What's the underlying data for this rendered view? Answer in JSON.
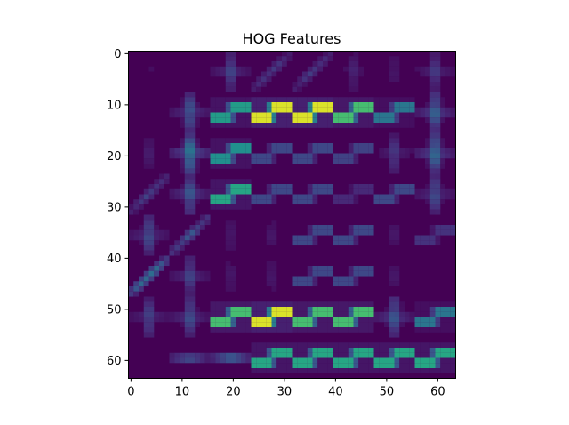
{
  "chart_data": {
    "type": "heatmap",
    "title": "HOG Features",
    "xlabel": "",
    "ylabel": "",
    "xlim": [
      -0.5,
      63.5
    ],
    "ylim": [
      63.5,
      -0.5
    ],
    "x_ticks": [
      0,
      10,
      20,
      30,
      40,
      50,
      60
    ],
    "y_ticks": [
      0,
      10,
      20,
      30,
      40,
      50,
      60
    ],
    "x_tick_labels": [
      "0",
      "10",
      "20",
      "30",
      "40",
      "50",
      "60"
    ],
    "y_tick_labels": [
      "0",
      "10",
      "20",
      "30",
      "40",
      "50",
      "60"
    ],
    "grid": false,
    "colormap": "viridis",
    "value_range": [
      0,
      1
    ],
    "background_value": 0,
    "background_color": "#440154",
    "cell_size": 8,
    "cells": [
      [
        0.06,
        0.06,
        0.3,
        0.2,
        0.2,
        0.15,
        0.1,
        0.25
      ],
      [
        0.05,
        0.4,
        0.55,
        0.95,
        0.95,
        0.7,
        0.4,
        0.45
      ],
      [
        0.12,
        0.6,
        0.5,
        0.22,
        0.22,
        0.2,
        0.25,
        0.5
      ],
      [
        0.22,
        0.4,
        0.6,
        0.22,
        0.22,
        0.12,
        0.22,
        0.35
      ],
      [
        0.35,
        0.3,
        0.1,
        0.1,
        0.22,
        0.22,
        0.1,
        0.15
      ],
      [
        0.45,
        0.3,
        0.1,
        0.1,
        0.22,
        0.22,
        0.1,
        0.06
      ],
      [
        0.3,
        0.35,
        0.7,
        0.95,
        0.7,
        0.7,
        0.4,
        0.4
      ],
      [
        0.0,
        0.35,
        0.4,
        0.6,
        0.6,
        0.6,
        0.6,
        0.6
      ]
    ],
    "cell_patterns": [
      [
        "cross",
        "cross",
        "cross",
        "diag",
        "diag",
        "cross",
        "vertical",
        "cross"
      ],
      [
        "cross",
        "cross",
        "step",
        "step",
        "step",
        "step",
        "step",
        "cross"
      ],
      [
        "cross",
        "cross",
        "step",
        "step",
        "step",
        "step",
        "cross",
        "cross"
      ],
      [
        "diag",
        "cross",
        "step",
        "step",
        "step",
        "step",
        "step",
        "cross"
      ],
      [
        "cross",
        "diag",
        "cross",
        "cross",
        "step",
        "step",
        "cross",
        "step"
      ],
      [
        "diag",
        "cross",
        "cross",
        "cross",
        "step",
        "step",
        "cross",
        "cross"
      ],
      [
        "cross",
        "cross",
        "step",
        "step",
        "step",
        "step",
        "cross",
        "step"
      ],
      [
        "none",
        "horizontal",
        "horizontal",
        "step",
        "step",
        "step",
        "step",
        "step"
      ]
    ],
    "colorbar": false
  }
}
